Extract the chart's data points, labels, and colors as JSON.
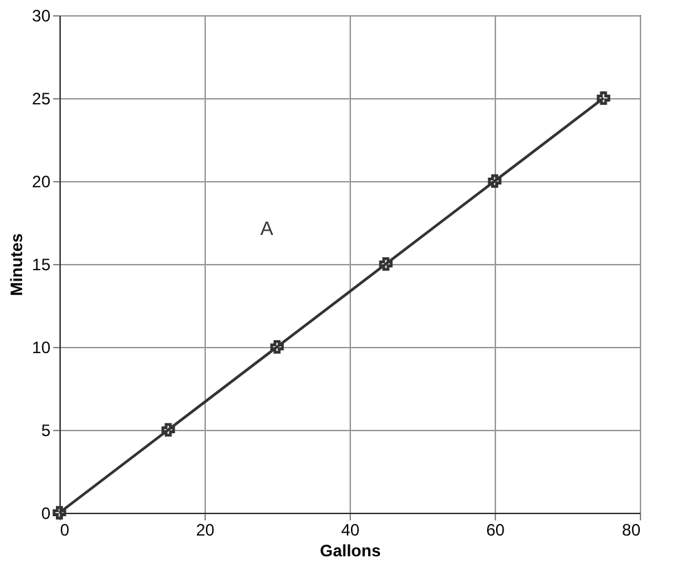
{
  "chart_data": {
    "type": "line",
    "xlabel": "Gallons",
    "ylabel": "Minutes",
    "x": [
      0,
      15,
      30,
      45,
      60,
      75
    ],
    "series": [
      {
        "color": "#333333",
        "values": [
          0,
          5,
          10,
          15,
          20,
          25
        ]
      }
    ],
    "xlim": [
      0,
      80
    ],
    "xticks": [
      0,
      20,
      40,
      60,
      80
    ],
    "ylim": [
      0,
      30
    ],
    "yticks": [
      0,
      5,
      10,
      15,
      20,
      25,
      30
    ],
    "grid": true,
    "marker": "cross",
    "line_style": "solid",
    "annotations": [
      "A"
    ]
  }
}
